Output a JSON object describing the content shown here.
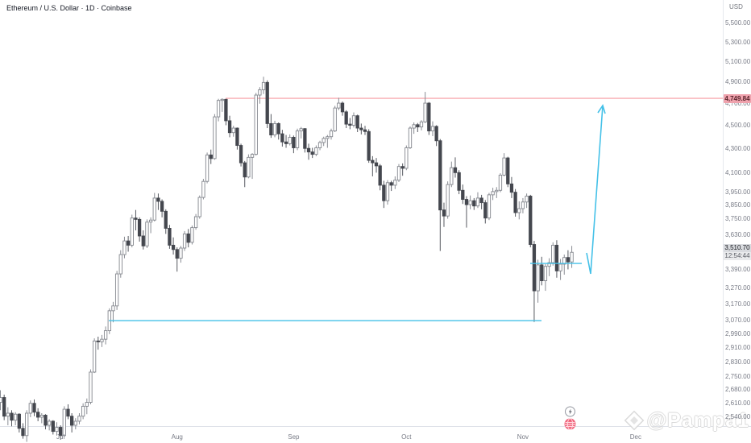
{
  "header": {
    "symbol_title": "Ethereum / U.S. Dollar · 1D · Coinbase",
    "currency_label": "USD"
  },
  "watermark": {
    "text": "@Pampa1"
  },
  "chart_data": {
    "type": "candlestick",
    "title": "Ethereum / U.S. Dollar",
    "timeframe": "1D",
    "exchange": "Coinbase",
    "scale": "logarithmic",
    "grid": "off",
    "y_axis": {
      "unit": "USD",
      "ticks": [
        5500,
        5300,
        5100,
        4900,
        4700,
        4500,
        4300,
        4100,
        3950,
        3850,
        3750,
        3630,
        3390,
        3270,
        3170,
        3070,
        2990,
        2910,
        2830,
        2750,
        2680,
        2610,
        2540
      ],
      "visible_range": [
        2420,
        5600
      ]
    },
    "x_axis": {
      "months": [
        {
          "label": "Jul",
          "candle_index": 16
        },
        {
          "label": "Aug",
          "candle_index": 47
        },
        {
          "label": "Sep",
          "candle_index": 78
        },
        {
          "label": "Oct",
          "candle_index": 108
        },
        {
          "label": "Nov",
          "candle_index": 139
        },
        {
          "label": "Dec",
          "candle_index": 169
        }
      ]
    },
    "candles_format": [
      "open",
      "high",
      "low",
      "close"
    ],
    "candles": [
      [
        2615,
        2678,
        2575,
        2640
      ],
      [
        2640,
        2655,
        2525,
        2545
      ],
      [
        2545,
        2590,
        2500,
        2560
      ],
      [
        2560,
        2575,
        2495,
        2525
      ],
      [
        2525,
        2565,
        2500,
        2555
      ],
      [
        2555,
        2560,
        2465,
        2485
      ],
      [
        2485,
        2510,
        2435,
        2450
      ],
      [
        2450,
        2575,
        2420,
        2560
      ],
      [
        2560,
        2625,
        2540,
        2610
      ],
      [
        2610,
        2630,
        2545,
        2565
      ],
      [
        2565,
        2585,
        2520,
        2540
      ],
      [
        2540,
        2560,
        2510,
        2550
      ],
      [
        2550,
        2555,
        2480,
        2500
      ],
      [
        2500,
        2530,
        2475,
        2520
      ],
      [
        2520,
        2525,
        2455,
        2470
      ],
      [
        2470,
        2515,
        2450,
        2490
      ],
      [
        2490,
        2500,
        2430,
        2450
      ],
      [
        2450,
        2595,
        2445,
        2580
      ],
      [
        2580,
        2605,
        2530,
        2545
      ],
      [
        2545,
        2560,
        2465,
        2500
      ],
      [
        2500,
        2535,
        2480,
        2520
      ],
      [
        2520,
        2560,
        2505,
        2545
      ],
      [
        2545,
        2610,
        2530,
        2595
      ],
      [
        2595,
        2635,
        2555,
        2615
      ],
      [
        2615,
        2790,
        2605,
        2775
      ],
      [
        2775,
        2965,
        2770,
        2950
      ],
      [
        2950,
        2975,
        2900,
        2945
      ],
      [
        2945,
        2985,
        2915,
        2960
      ],
      [
        2960,
        3035,
        2930,
        3010
      ],
      [
        3010,
        3145,
        2990,
        3130
      ],
      [
        3130,
        3185,
        3060,
        3160
      ],
      [
        3160,
        3385,
        3135,
        3365
      ],
      [
        3365,
        3525,
        3340,
        3495
      ],
      [
        3495,
        3620,
        3470,
        3590
      ],
      [
        3590,
        3625,
        3515,
        3560
      ],
      [
        3560,
        3780,
        3545,
        3755
      ],
      [
        3755,
        3815,
        3665,
        3745
      ],
      [
        3745,
        3760,
        3585,
        3625
      ],
      [
        3625,
        3665,
        3530,
        3555
      ],
      [
        3555,
        3745,
        3540,
        3725
      ],
      [
        3725,
        3760,
        3645,
        3740
      ],
      [
        3740,
        3945,
        3730,
        3905
      ],
      [
        3905,
        3940,
        3815,
        3880
      ],
      [
        3880,
        3895,
        3760,
        3805
      ],
      [
        3805,
        3820,
        3640,
        3680
      ],
      [
        3680,
        3705,
        3535,
        3560
      ],
      [
        3560,
        3615,
        3495,
        3530
      ],
      [
        3530,
        3545,
        3380,
        3470
      ],
      [
        3470,
        3555,
        3440,
        3540
      ],
      [
        3540,
        3660,
        3520,
        3640
      ],
      [
        3640,
        3675,
        3545,
        3580
      ],
      [
        3580,
        3700,
        3565,
        3685
      ],
      [
        3685,
        3785,
        3670,
        3765
      ],
      [
        3765,
        3925,
        3750,
        3910
      ],
      [
        3910,
        4055,
        3895,
        4035
      ],
      [
        4035,
        4270,
        4020,
        4250
      ],
      [
        4250,
        4295,
        4175,
        4220
      ],
      [
        4220,
        4605,
        4210,
        4580
      ],
      [
        4580,
        4745,
        4540,
        4730
      ],
      [
        4730,
        4750,
        4625,
        4740
      ],
      [
        4740,
        4745,
        4505,
        4545
      ],
      [
        4545,
        4590,
        4400,
        4440
      ],
      [
        4440,
        4500,
        4405,
        4480
      ],
      [
        4480,
        4485,
        4295,
        4330
      ],
      [
        4330,
        4345,
        4155,
        4185
      ],
      [
        4185,
        4200,
        3990,
        4070
      ],
      [
        4070,
        4255,
        4060,
        4230
      ],
      [
        4230,
        4265,
        4055,
        4255
      ],
      [
        4255,
        4800,
        4245,
        4780
      ],
      [
        4780,
        4855,
        4700,
        4830
      ],
      [
        4830,
        4955,
        4790,
        4900
      ],
      [
        4900,
        4920,
        4480,
        4520
      ],
      [
        4520,
        4605,
        4395,
        4420
      ],
      [
        4420,
        4545,
        4400,
        4520
      ],
      [
        4520,
        4530,
        4380,
        4430
      ],
      [
        4430,
        4465,
        4320,
        4360
      ],
      [
        4360,
        4420,
        4310,
        4345
      ],
      [
        4345,
        4425,
        4330,
        4400
      ],
      [
        4400,
        4415,
        4265,
        4310
      ],
      [
        4310,
        4475,
        4290,
        4455
      ],
      [
        4455,
        4490,
        4390,
        4475
      ],
      [
        4475,
        4480,
        4270,
        4305
      ],
      [
        4305,
        4345,
        4210,
        4275
      ],
      [
        4275,
        4310,
        4225,
        4255
      ],
      [
        4255,
        4330,
        4240,
        4310
      ],
      [
        4310,
        4370,
        4290,
        4355
      ],
      [
        4355,
        4405,
        4325,
        4390
      ],
      [
        4390,
        4420,
        4310,
        4405
      ],
      [
        4405,
        4475,
        4380,
        4455
      ],
      [
        4455,
        4680,
        4445,
        4660
      ],
      [
        4660,
        4755,
        4640,
        4705
      ],
      [
        4705,
        4720,
        4590,
        4625
      ],
      [
        4625,
        4640,
        4480,
        4515
      ],
      [
        4515,
        4570,
        4470,
        4505
      ],
      [
        4505,
        4620,
        4485,
        4590
      ],
      [
        4590,
        4600,
        4445,
        4480
      ],
      [
        4480,
        4520,
        4425,
        4465
      ],
      [
        4465,
        4500,
        4420,
        4450
      ],
      [
        4450,
        4470,
        4185,
        4205
      ],
      [
        4205,
        4240,
        4075,
        4185
      ],
      [
        4185,
        4225,
        4105,
        4160
      ],
      [
        4160,
        4175,
        3965,
        4005
      ],
      [
        4005,
        4040,
        3830,
        3885
      ],
      [
        3885,
        4045,
        3855,
        4025
      ],
      [
        4025,
        4040,
        3960,
        4005
      ],
      [
        4005,
        4075,
        3975,
        4045
      ],
      [
        4045,
        4175,
        4030,
        4155
      ],
      [
        4155,
        4180,
        4080,
        4140
      ],
      [
        4140,
        4330,
        4125,
        4310
      ],
      [
        4310,
        4495,
        4300,
        4480
      ],
      [
        4480,
        4530,
        4430,
        4510
      ],
      [
        4510,
        4525,
        4445,
        4490
      ],
      [
        4490,
        4550,
        4460,
        4535
      ],
      [
        4535,
        4810,
        4525,
        4705
      ],
      [
        4705,
        4715,
        4420,
        4455
      ],
      [
        4455,
        4540,
        4410,
        4495
      ],
      [
        4495,
        4505,
        4325,
        4370
      ],
      [
        4370,
        4385,
        3520,
        3815
      ],
      [
        3815,
        3870,
        3690,
        3770
      ],
      [
        3770,
        4035,
        3750,
        4010
      ],
      [
        4010,
        4195,
        3990,
        4145
      ],
      [
        4145,
        4230,
        4065,
        4105
      ],
      [
        4105,
        4125,
        3935,
        3965
      ],
      [
        3965,
        4010,
        3860,
        3895
      ],
      [
        3895,
        3920,
        3685,
        3855
      ],
      [
        3855,
        3925,
        3820,
        3885
      ],
      [
        3885,
        3905,
        3815,
        3845
      ],
      [
        3845,
        3950,
        3830,
        3905
      ],
      [
        3905,
        3930,
        3820,
        3870
      ],
      [
        3870,
        3890,
        3715,
        3755
      ],
      [
        3755,
        3945,
        3740,
        3930
      ],
      [
        3930,
        3985,
        3890,
        3955
      ],
      [
        3955,
        3990,
        3905,
        3965
      ],
      [
        3965,
        4100,
        3950,
        4085
      ],
      [
        4085,
        4265,
        4075,
        4225
      ],
      [
        4225,
        4235,
        3990,
        4015
      ],
      [
        4015,
        4070,
        3905,
        3950
      ],
      [
        3950,
        3975,
        3765,
        3795
      ],
      [
        3795,
        3880,
        3745,
        3825
      ],
      [
        3825,
        3905,
        3790,
        3875
      ],
      [
        3875,
        3940,
        3830,
        3920
      ],
      [
        3920,
        3930,
        3545,
        3565
      ],
      [
        3565,
        3590,
        3062,
        3255
      ],
      [
        3255,
        3460,
        3180,
        3425
      ],
      [
        3425,
        3480,
        3290,
        3320
      ],
      [
        3320,
        3430,
        3255,
        3415
      ],
      [
        3415,
        3470,
        3350,
        3440
      ],
      [
        3440,
        3580,
        3420,
        3560
      ],
      [
        3560,
        3595,
        3340,
        3385
      ],
      [
        3385,
        3465,
        3325,
        3430
      ],
      [
        3430,
        3495,
        3360,
        3475
      ],
      [
        3475,
        3525,
        3395,
        3445
      ],
      [
        3445,
        3555,
        3405,
        3510.7
      ]
    ],
    "annotations": {
      "resistance_line": {
        "price": 4749.84,
        "label": "4,749.84",
        "color": "#f23645",
        "style": "horizontal-ray"
      },
      "support_line": {
        "price": 3070,
        "color": "#45c1e8",
        "style": "horizontal-segment"
      },
      "short_level_line": {
        "price": 3435,
        "color": "#45c1e8",
        "style": "horizontal-segment"
      },
      "arrow": {
        "direction": "up",
        "from_price": 3365,
        "to_price": 4680,
        "color": "#45c1e8"
      }
    },
    "last_price": {
      "value": 3510.7,
      "label": "3,510.70",
      "countdown": "12:54:44"
    },
    "colors": {
      "up_fill": "#ffffff",
      "up_border": "#84878e",
      "down_fill": "#44474e",
      "background": "#ffffff",
      "axis_text": "#787b86"
    }
  },
  "event_markers": [
    {
      "icon": "lightning-event-icon"
    },
    {
      "icon": "flag-event-icon"
    }
  ]
}
